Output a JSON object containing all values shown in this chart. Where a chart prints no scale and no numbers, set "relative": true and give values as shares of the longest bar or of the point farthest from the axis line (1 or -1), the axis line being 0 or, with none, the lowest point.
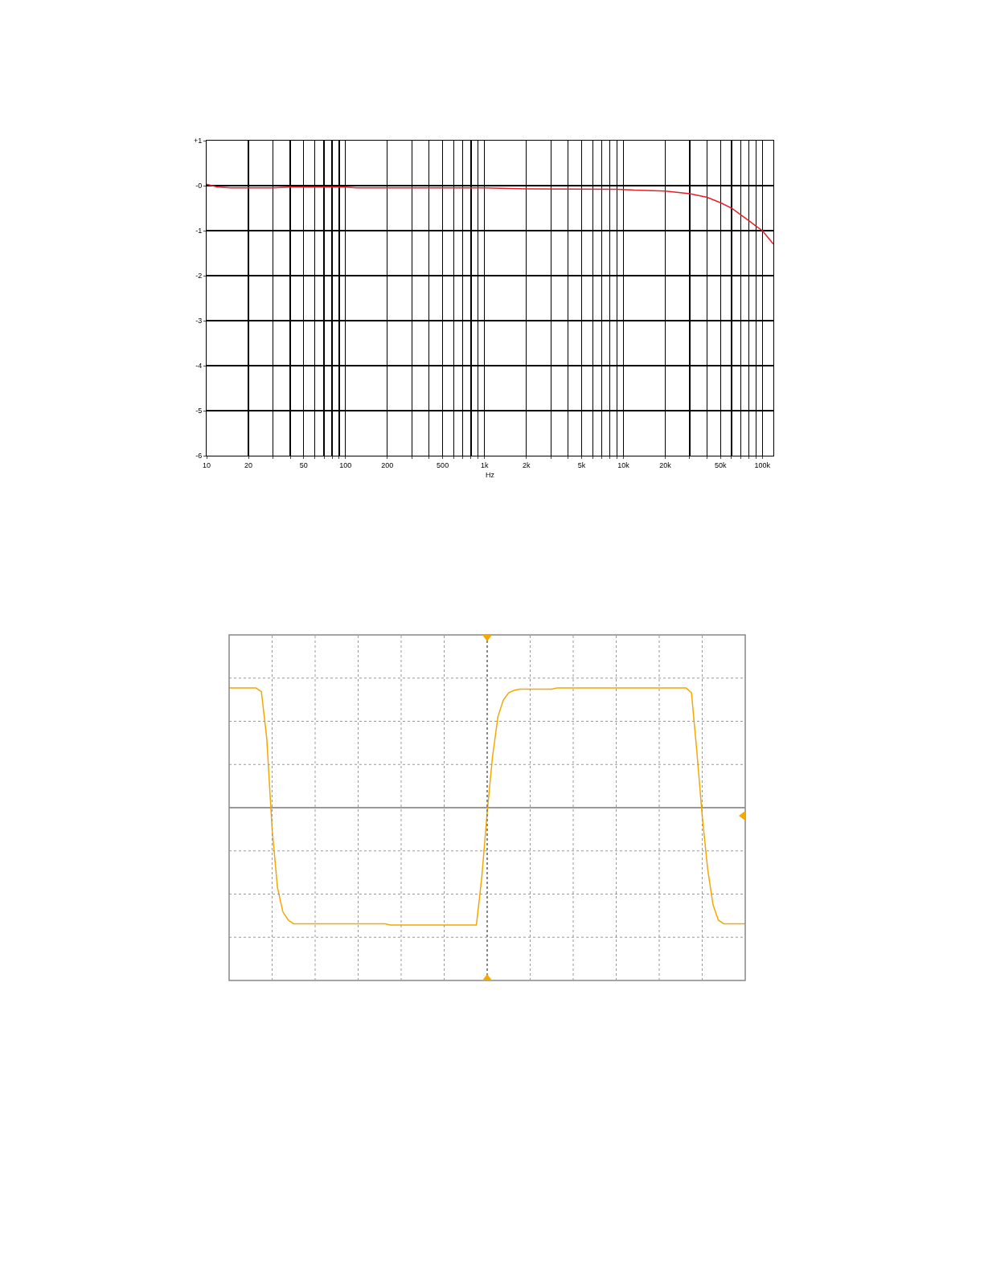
{
  "chart_data": [
    {
      "type": "line",
      "xlabel": "Hz",
      "log": "x",
      "grid": true,
      "line_style": "solid",
      "marker": "none",
      "xlim": [
        10,
        120000
      ],
      "ylim": [
        -6,
        1
      ],
      "xticks": [
        10,
        20,
        {
          "value": 30,
          "label": null
        },
        {
          "value": 40,
          "label": null
        },
        50,
        {
          "value": 60,
          "label": null
        },
        {
          "value": 70,
          "label": null
        },
        {
          "value": 80,
          "label": null
        },
        {
          "value": 90,
          "label": null
        },
        100,
        200,
        {
          "value": 300,
          "label": null
        },
        {
          "value": 400,
          "label": null
        },
        500,
        {
          "value": 600,
          "label": null
        },
        {
          "value": 700,
          "label": null
        },
        {
          "value": 800,
          "label": null
        },
        {
          "value": 900,
          "label": null
        },
        {
          "value": 1000,
          "label": "1k"
        },
        {
          "value": 2000,
          "label": "2k"
        },
        {
          "value": 3000,
          "label": null
        },
        {
          "value": 4000,
          "label": null
        },
        {
          "value": 5000,
          "label": "5k"
        },
        {
          "value": 6000,
          "label": null
        },
        {
          "value": 7000,
          "label": null
        },
        {
          "value": 8000,
          "label": null
        },
        {
          "value": 9000,
          "label": null
        },
        {
          "value": 10000,
          "label": "10k"
        },
        {
          "value": 20000,
          "label": "20k"
        },
        {
          "value": 30000,
          "label": null
        },
        {
          "value": 40000,
          "label": null
        },
        {
          "value": 50000,
          "label": "50k"
        },
        {
          "value": 60000,
          "label": null
        },
        {
          "value": 70000,
          "label": null
        },
        {
          "value": 80000,
          "label": null
        },
        {
          "value": 90000,
          "label": null
        },
        {
          "value": 100000,
          "label": "100k"
        }
      ],
      "yticks": [
        {
          "value": 1,
          "label": "+1"
        },
        {
          "value": 0,
          "label": "-0"
        },
        -1,
        -2,
        -3,
        -4,
        -5,
        -6
      ],
      "x": [
        10,
        12,
        15,
        30,
        40,
        100,
        120,
        1000,
        2000,
        9000,
        12000,
        20000,
        30000,
        40000,
        50000,
        60000,
        70000,
        80000,
        90000,
        100000,
        120000
      ],
      "series": [
        {
          "color": "#e8202a",
          "values": [
            0.03,
            -0.03,
            -0.05,
            -0.05,
            -0.03,
            -0.03,
            -0.05,
            -0.05,
            -0.07,
            -0.08,
            -0.1,
            -0.12,
            -0.18,
            -0.26,
            -0.38,
            -0.5,
            -0.65,
            -0.78,
            -0.9,
            -1.0,
            -1.3
          ]
        }
      ]
    },
    {
      "type": "line",
      "relative": true,
      "grid": true,
      "line_style": "solid",
      "marker": "none",
      "categories": [
        null,
        null,
        null,
        null,
        null,
        null,
        null,
        null,
        null,
        null,
        null,
        null,
        null,
        null,
        null,
        null,
        null,
        null,
        null,
        null,
        null,
        null,
        null,
        null,
        null,
        null,
        null,
        null,
        null,
        null,
        null,
        null,
        null,
        null,
        null,
        null,
        null,
        null,
        null,
        null,
        null,
        null,
        null,
        null,
        null,
        null,
        null,
        null,
        null,
        null,
        null,
        null,
        null,
        null,
        null,
        null,
        null,
        null,
        null,
        null,
        null,
        null,
        null,
        null,
        null,
        null,
        null,
        null,
        null,
        null,
        null,
        null,
        null,
        null,
        null,
        null,
        null,
        null,
        null,
        null,
        null,
        null,
        null,
        null,
        null,
        null,
        null,
        null,
        null,
        null,
        null,
        null,
        null,
        null,
        null,
        null,
        null
      ],
      "series": [
        {
          "color": "#f5a800",
          "values": [
            1,
            1,
            1,
            1,
            1,
            1,
            0.97,
            0.58,
            -0.18,
            -0.67,
            -0.87,
            -0.94,
            -0.97,
            -0.97,
            -0.97,
            -0.97,
            -0.97,
            -0.97,
            -0.97,
            -0.97,
            -0.97,
            -0.97,
            -0.97,
            -0.97,
            -0.97,
            -0.97,
            -0.97,
            -0.97,
            -0.97,
            -0.97,
            -0.98,
            -0.98,
            -0.98,
            -0.98,
            -0.98,
            -0.98,
            -0.98,
            -0.98,
            -0.98,
            -0.98,
            -0.98,
            -0.98,
            -0.98,
            -0.98,
            -0.98,
            -0.98,
            -0.98,
            -0.58,
            -0.04,
            0.43,
            0.76,
            0.9,
            0.96,
            0.98,
            0.99,
            0.99,
            0.99,
            0.99,
            0.99,
            0.99,
            0.99,
            1,
            1,
            1,
            1,
            1,
            1,
            1,
            1,
            1,
            1,
            1,
            1,
            1,
            1,
            1,
            1,
            1,
            1,
            1,
            1,
            1,
            1,
            1,
            1,
            1,
            0.96,
            0.47,
            -0.07,
            -0.51,
            -0.81,
            -0.94,
            -0.97,
            -0.97,
            -0.97,
            -0.97,
            -0.97
          ]
        }
      ]
    }
  ]
}
